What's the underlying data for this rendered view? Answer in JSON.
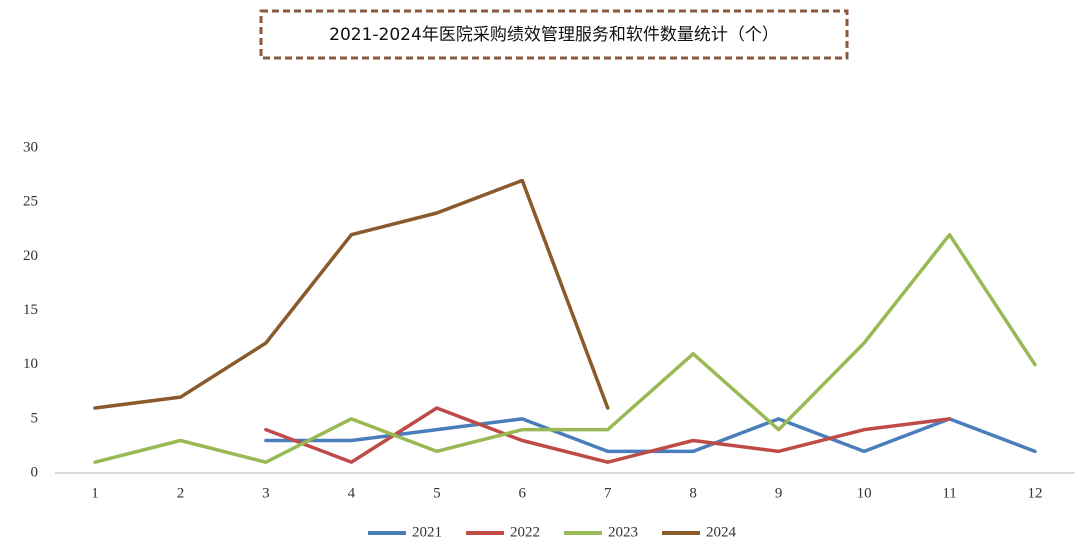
{
  "chart_data": {
    "type": "line",
    "title": "2021-2024年医院采购绩效管理服务和软件数量统计（个）",
    "categories": [
      "1",
      "2",
      "3",
      "4",
      "5",
      "6",
      "7",
      "8",
      "9",
      "10",
      "11",
      "12"
    ],
    "series": [
      {
        "name": "2021",
        "color": "#4a7ebb",
        "values": [
          null,
          null,
          3,
          3,
          4,
          5,
          2,
          2,
          5,
          2,
          5,
          2
        ]
      },
      {
        "name": "2022",
        "color": "#be4b48",
        "values": [
          null,
          null,
          4,
          1,
          6,
          3,
          1,
          3,
          2,
          4,
          5,
          null
        ]
      },
      {
        "name": "2023",
        "color": "#98b954",
        "values": [
          1,
          3,
          1,
          5,
          2,
          4,
          4,
          11,
          4,
          12,
          22,
          10
        ]
      },
      {
        "name": "2024",
        "color": "#8b5a2b",
        "values": [
          6,
          7,
          12,
          22,
          24,
          27,
          6,
          null,
          null,
          null,
          null,
          null
        ]
      }
    ],
    "ylim": [
      0,
      30
    ],
    "yticks": [
      0,
      5,
      10,
      15,
      20,
      25,
      30
    ],
    "grid": false,
    "legend": "bottom"
  }
}
